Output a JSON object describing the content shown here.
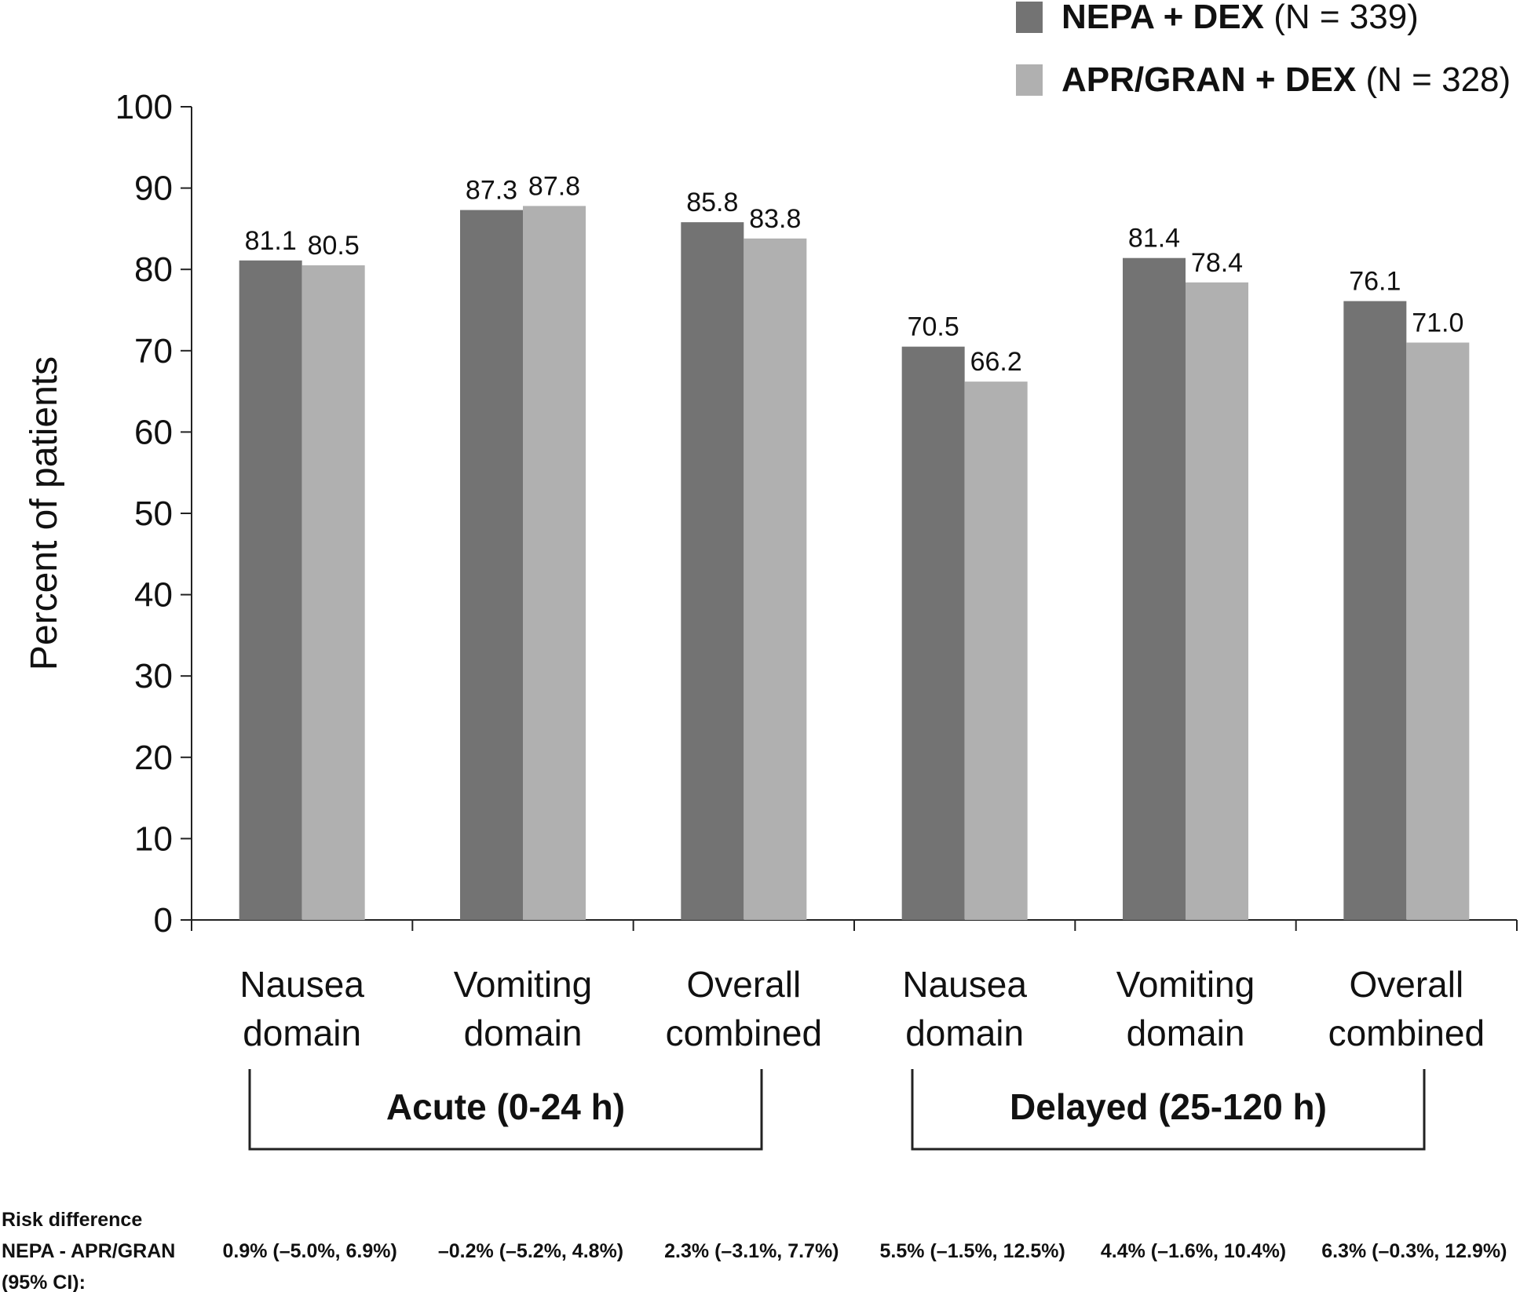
{
  "chart_data": {
    "type": "bar",
    "title": "",
    "ylabel": "Percent of patients",
    "xlabel": "",
    "ylim": [
      0,
      100
    ],
    "yticks": [
      0,
      10,
      20,
      30,
      40,
      50,
      60,
      70,
      80,
      90,
      100
    ],
    "grid": false,
    "legend_position": "top-right",
    "categories": [
      [
        "Nausea",
        "domain"
      ],
      [
        "Vomiting",
        "domain"
      ],
      [
        "Overall",
        "combined"
      ],
      [
        "Nausea",
        "domain"
      ],
      [
        "Vomiting",
        "domain"
      ],
      [
        "Overall",
        "combined"
      ]
    ],
    "groups": [
      {
        "label": "Acute (0-24 h)",
        "from": 0,
        "to": 2
      },
      {
        "label": "Delayed (25-120 h)",
        "from": 3,
        "to": 5
      }
    ],
    "series": [
      {
        "name_bold": "NEPA + DEX",
        "name_rest": " (N = 339)",
        "color": "#737373",
        "values": [
          81.1,
          87.3,
          85.8,
          70.5,
          81.4,
          76.1
        ],
        "labels": [
          "81.1",
          "87.3",
          "85.8",
          "70.5",
          "81.4",
          "76.1"
        ]
      },
      {
        "name_bold": "APR/GRAN + DEX",
        "name_rest": " (N = 328)",
        "color": "#b0b0b0",
        "values": [
          80.5,
          87.8,
          83.8,
          66.2,
          78.4,
          71.0
        ],
        "labels": [
          "80.5",
          "87.8",
          "83.8",
          "66.2",
          "78.4",
          "71.0"
        ]
      }
    ],
    "risk_difference": {
      "label_lines": [
        "Risk difference",
        "NEPA - APR/GRAN",
        "(95% CI):"
      ],
      "values": [
        "0.9% (–5.0%, 6.9%)",
        "–0.2% (–5.2%, 4.8%)",
        "2.3% (–3.1%, 7.7%)",
        "5.5% (–1.5%, 12.5%)",
        "4.4% (–1.6%, 10.4%)",
        "6.3% (–0.3%, 12.9%)"
      ]
    }
  }
}
